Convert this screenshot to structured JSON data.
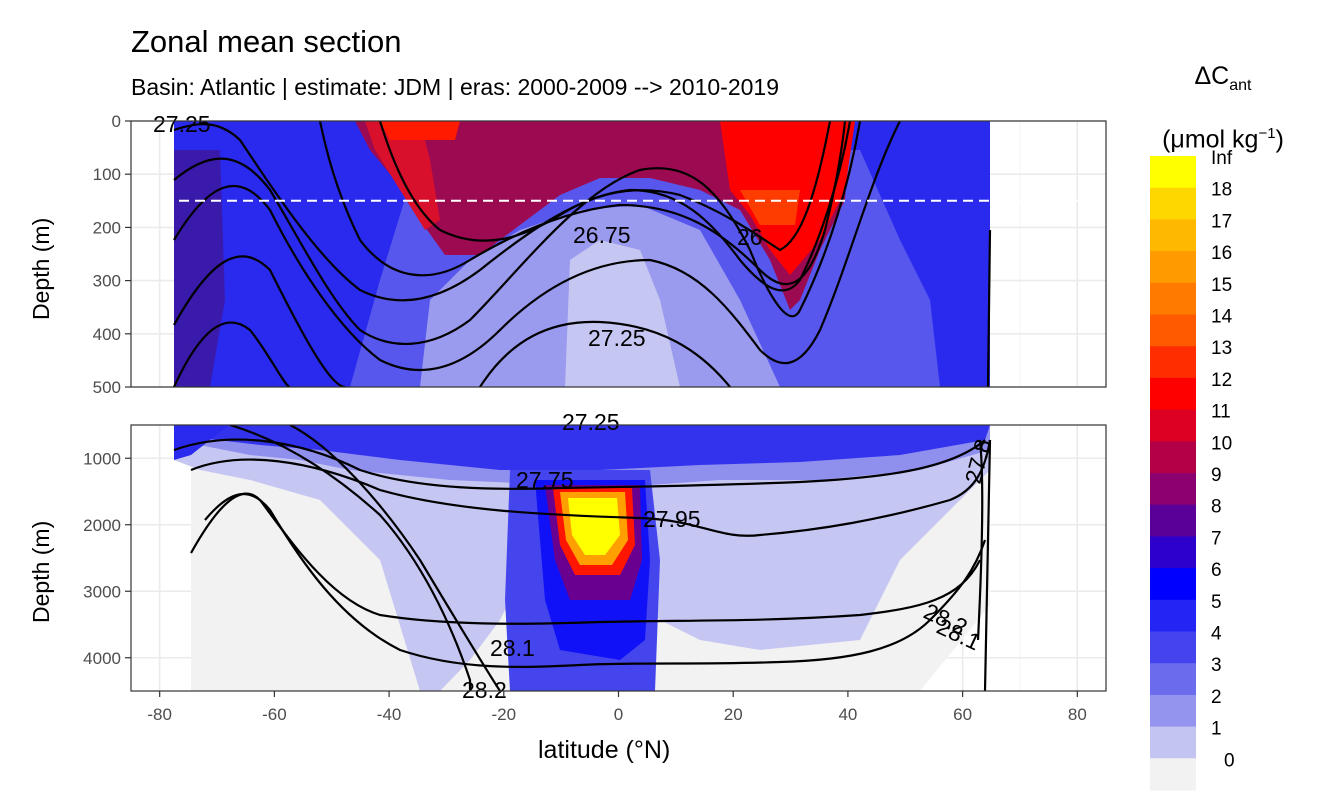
{
  "title": "Zonal mean section",
  "subtitle": "Basin: Atlantic | estimate: JDM  | eras: 2000-2009 --> 2010-2019",
  "chart_data": {
    "type": "heatmap",
    "xlabel": "latitude (°N)",
    "xlim": [
      -85,
      85
    ],
    "x_ticks": [
      "-80",
      "-60",
      "-40",
      "-20",
      "0",
      "20",
      "40",
      "60",
      "80"
    ],
    "panels": [
      {
        "ylabel": "Depth (m)",
        "ylim": [
          0,
          500
        ],
        "y_ticks": [
          "0",
          "100",
          "200",
          "300",
          "400",
          "500"
        ]
      },
      {
        "ylabel": "Depth (m)",
        "ylim": [
          500,
          4500
        ],
        "y_ticks": [
          "1000",
          "2000",
          "3000",
          "4000"
        ]
      }
    ],
    "reference_line_depth_m": 150,
    "contour_labels": [
      "27.25",
      "26.75",
      "26",
      "27.25",
      "27.25",
      "27.75",
      "27.95",
      "28.1",
      "28.2",
      "28.1",
      "28.2",
      "27.8"
    ],
    "legend": {
      "title_main": "ΔC",
      "title_sub": "ant",
      "unit_prefix": "(μmol kg",
      "unit_sup": "−1",
      "unit_suffix": ")",
      "labels": [
        "Inf",
        "18",
        "17",
        "16",
        "15",
        "14",
        "13",
        "12",
        "11",
        "10",
        "9",
        "8",
        "7",
        "6",
        "5",
        "4",
        "3",
        "2",
        "1",
        "0"
      ],
      "colors": [
        "#ffff00",
        "#ffd700",
        "#ffb800",
        "#ff9a00",
        "#ff7b00",
        "#ff5a00",
        "#ff2d00",
        "#ff0000",
        "#dd0022",
        "#b30047",
        "#8c0070",
        "#5a0099",
        "#2d00cc",
        "#0000ff",
        "#2424f5",
        "#4444ee",
        "#6b6bee",
        "#9494ee",
        "#c4c4f2",
        "#f2f2f2"
      ]
    }
  }
}
